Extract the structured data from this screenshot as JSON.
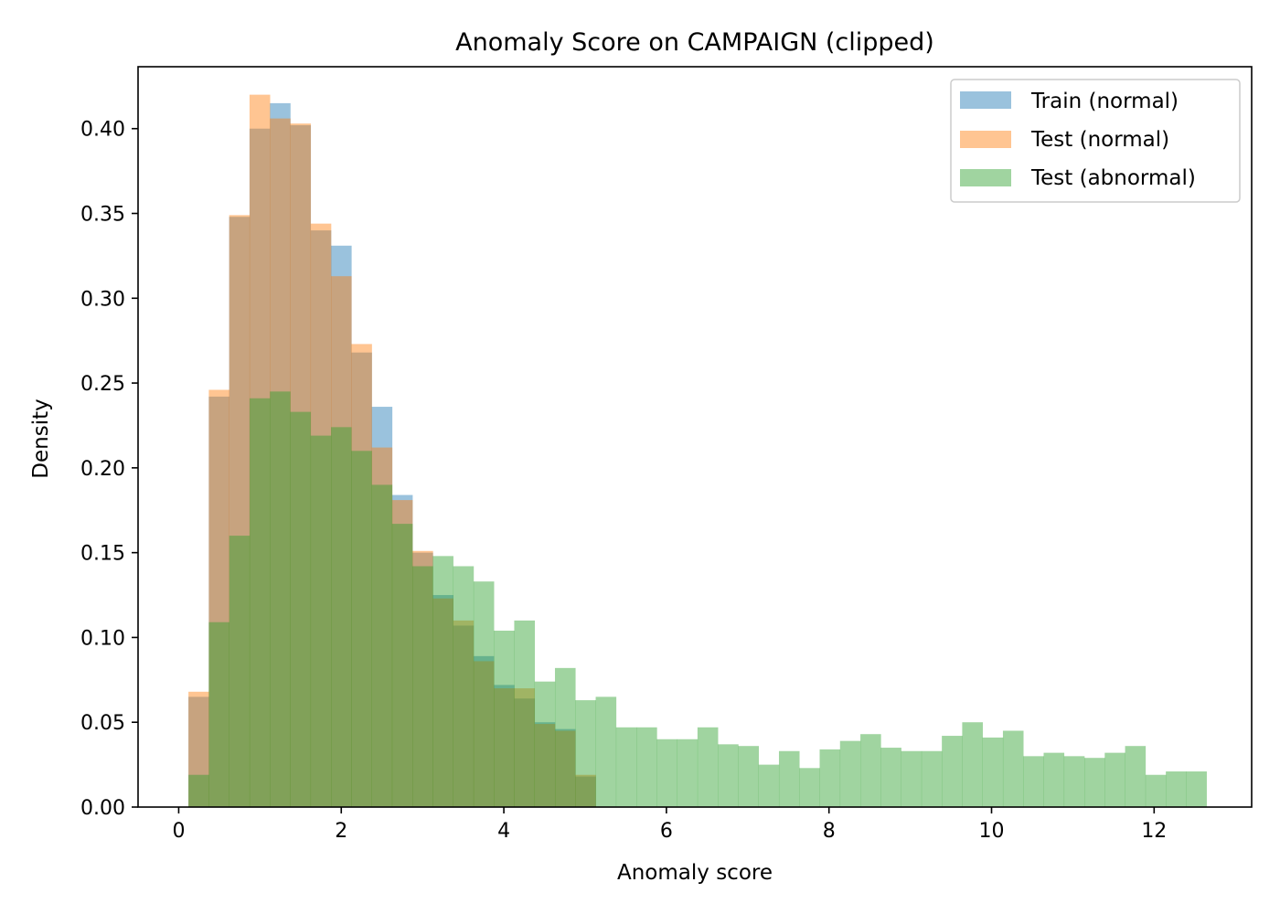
{
  "chart_data": {
    "type": "bar",
    "title": "Anomaly Score on CAMPAIGN (clipped)",
    "xlabel": "Anomaly score",
    "ylabel": "Density",
    "xlim": [
      -0.5,
      13.2
    ],
    "ylim": [
      0,
      0.4365
    ],
    "xticks": [
      0,
      2,
      4,
      6,
      8,
      10,
      12
    ],
    "xtick_labels": [
      "0",
      "2",
      "4",
      "6",
      "8",
      "10",
      "12"
    ],
    "yticks": [
      0,
      0.05,
      0.1,
      0.15,
      0.2,
      0.25,
      0.3,
      0.35,
      0.4
    ],
    "ytick_labels": [
      "0.00",
      "0.05",
      "0.10",
      "0.15",
      "0.20",
      "0.25",
      "0.30",
      "0.35",
      "0.40"
    ],
    "legend_position": "top-right",
    "grid": false,
    "bin_width": 0.2505,
    "series": [
      {
        "name": "Train (normal)",
        "color": "#1f77b4",
        "opacity": 0.45,
        "bin_start": 0.12,
        "values": [
          0.065,
          0.242,
          0.348,
          0.4,
          0.415,
          0.402,
          0.34,
          0.331,
          0.268,
          0.236,
          0.184,
          0.15,
          0.125,
          0.107,
          0.089,
          0.072,
          0.064,
          0.05,
          0.046,
          0.018
        ]
      },
      {
        "name": "Test (normal)",
        "color": "#ff7f0e",
        "opacity": 0.45,
        "bin_start": 0.12,
        "values": [
          0.068,
          0.246,
          0.349,
          0.42,
          0.406,
          0.403,
          0.344,
          0.313,
          0.273,
          0.212,
          0.181,
          0.151,
          0.123,
          0.11,
          0.086,
          0.07,
          0.07,
          0.049,
          0.045,
          0.019
        ]
      },
      {
        "name": "Test (abnormal)",
        "color": "#2ca02c",
        "opacity": 0.45,
        "bin_start": 0.12,
        "values": [
          0.019,
          0.109,
          0.16,
          0.241,
          0.245,
          0.233,
          0.219,
          0.224,
          0.21,
          0.19,
          0.167,
          0.142,
          0.148,
          0.142,
          0.133,
          0.104,
          0.11,
          0.074,
          0.082,
          0.063,
          0.065,
          0.047,
          0.047,
          0.04,
          0.04,
          0.047,
          0.037,
          0.036,
          0.025,
          0.033,
          0.023,
          0.034,
          0.039,
          0.043,
          0.035,
          0.033,
          0.033,
          0.042,
          0.05,
          0.041,
          0.045,
          0.03,
          0.032,
          0.03,
          0.029,
          0.032,
          0.036,
          0.019,
          0.021,
          0.021
        ]
      }
    ]
  }
}
